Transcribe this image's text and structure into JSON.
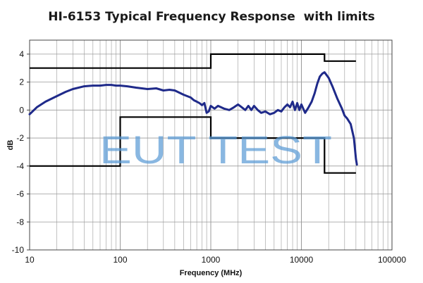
{
  "chart_data": {
    "type": "line",
    "title": "HI-6153 Typical Frequency Response  with limits",
    "xlabel": "Frequency (MHz)",
    "ylabel": "dB",
    "x_scale": "log",
    "xlim": [
      10,
      100000
    ],
    "ylim": [
      -10,
      5
    ],
    "x_ticks": [
      "10",
      "100",
      "1000",
      "10000",
      "100000"
    ],
    "y_ticks": [
      "-10",
      "-8",
      "-6",
      "-4",
      "-2",
      "0",
      "2",
      "4"
    ],
    "grid": true,
    "watermark": "EUT TEST",
    "colors": {
      "response": "#1f2a8a",
      "limits": "#000000",
      "grid": "#9a9a9a",
      "watermark": "#5b9bd5"
    },
    "series": [
      {
        "kind": "response",
        "x": [
          10,
          12,
          15,
          20,
          25,
          30,
          40,
          50,
          60,
          70,
          80,
          90,
          100,
          120,
          150,
          200,
          250,
          300,
          350,
          400,
          500,
          600,
          650,
          700,
          750,
          800,
          850,
          900,
          950,
          1000,
          1100,
          1200,
          1400,
          1600,
          1800,
          2000,
          2200,
          2400,
          2600,
          2800,
          3000,
          3300,
          3600,
          4000,
          4500,
          5000,
          5500,
          6000,
          6500,
          7000,
          7500,
          8000,
          8500,
          9000,
          9500,
          10000,
          11000,
          12000,
          13000,
          14000,
          15000,
          16000,
          17000,
          18000,
          19000,
          20000,
          22000,
          25000,
          28000,
          30000,
          32000,
          35000,
          38000,
          40000,
          41000
        ],
        "y": [
          -0.3,
          0.2,
          0.6,
          1.0,
          1.3,
          1.5,
          1.7,
          1.75,
          1.75,
          1.8,
          1.8,
          1.75,
          1.75,
          1.7,
          1.6,
          1.5,
          1.55,
          1.4,
          1.45,
          1.4,
          1.1,
          0.9,
          0.7,
          0.6,
          0.5,
          0.35,
          0.5,
          -0.2,
          -0.1,
          0.3,
          0.1,
          0.3,
          0.1,
          0.0,
          0.2,
          0.4,
          0.2,
          0.0,
          0.3,
          0.0,
          0.3,
          0.0,
          -0.2,
          -0.1,
          -0.3,
          -0.2,
          0.0,
          -0.1,
          0.2,
          0.4,
          0.2,
          0.6,
          0.0,
          0.5,
          0.0,
          0.4,
          -0.2,
          0.2,
          0.6,
          1.2,
          1.9,
          2.4,
          2.6,
          2.7,
          2.5,
          2.3,
          1.7,
          0.8,
          0.1,
          -0.4,
          -0.6,
          -1.0,
          -2.0,
          -3.5,
          -3.9
        ]
      },
      {
        "kind": "upper-limit",
        "x": [
          10,
          1000,
          1000,
          18000,
          18000,
          40000
        ],
        "y": [
          3,
          3,
          4,
          4,
          3.5,
          3.5
        ]
      },
      {
        "kind": "lower-limit",
        "x": [
          10,
          100,
          100,
          1000,
          1000,
          18000,
          18000,
          40000
        ],
        "y": [
          -4,
          -4,
          -0.5,
          -0.5,
          -2,
          -2,
          -4.5,
          -4.5
        ]
      }
    ]
  }
}
